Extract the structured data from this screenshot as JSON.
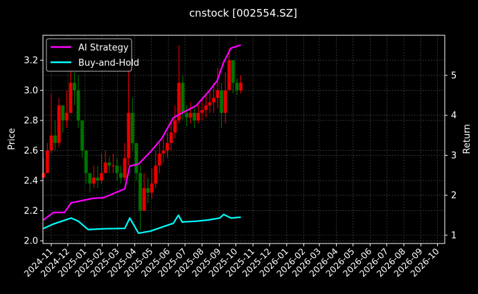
{
  "chart_data": {
    "type": "line",
    "title": "cnstock [002554.SZ]",
    "xlim": [
      "2024-10-17",
      "2026-10-14"
    ],
    "x_ticks": [
      "2024-11",
      "2024-12",
      "2025-01",
      "2025-02",
      "2025-03",
      "2025-04",
      "2025-05",
      "2025-06",
      "2025-07",
      "2025-08",
      "2025-09",
      "2025-10",
      "2025-11",
      "2025-12",
      "2026-01",
      "2026-02",
      "2026-03",
      "2026-04",
      "2026-05",
      "2026-06",
      "2026-07",
      "2026-08",
      "2026-09",
      "2026-10"
    ],
    "left_axis": {
      "label": "Price",
      "ylim": [
        1.982,
        3.366
      ],
      "ticks": [
        "2.0",
        "2.2",
        "2.4",
        "2.6",
        "2.8",
        "3.0",
        "3.2"
      ]
    },
    "right_axis": {
      "label": "Return",
      "ylim": [
        0.792,
        6.004
      ],
      "ticks": [
        "1",
        "2",
        "3",
        "4",
        "5"
      ]
    },
    "grid": true,
    "legend_placement": "top-left",
    "price": {
      "style": "candlestick",
      "up_color": "#ff0000",
      "down_color": "#008000",
      "dates": [
        "2024-10-18",
        "2024-10-25",
        "2024-11-01",
        "2024-11-08",
        "2024-11-15",
        "2024-11-22",
        "2024-11-29",
        "2024-12-06",
        "2024-12-13",
        "2024-12-20",
        "2024-12-27",
        "2025-01-03",
        "2025-01-10",
        "2025-01-17",
        "2025-01-24",
        "2025-01-31",
        "2025-02-07",
        "2025-02-14",
        "2025-02-21",
        "2025-02-28",
        "2025-03-07",
        "2025-03-14",
        "2025-03-21",
        "2025-03-28",
        "2025-04-04",
        "2025-04-11",
        "2025-04-18",
        "2025-04-25",
        "2025-05-02",
        "2025-05-09",
        "2025-05-16",
        "2025-05-23",
        "2025-05-30",
        "2025-06-06",
        "2025-06-13",
        "2025-06-20",
        "2025-06-27",
        "2025-07-04",
        "2025-07-11",
        "2025-07-18",
        "2025-07-25",
        "2025-08-01",
        "2025-08-08",
        "2025-08-15",
        "2025-08-22",
        "2025-08-29",
        "2025-09-05",
        "2025-09-12",
        "2025-09-19",
        "2025-09-26",
        "2025-10-03",
        "2025-10-10"
      ],
      "close": [
        2.45,
        2.6,
        2.7,
        2.65,
        2.9,
        2.8,
        2.85,
        3.05,
        3.0,
        2.8,
        2.6,
        2.45,
        2.38,
        2.42,
        2.4,
        2.45,
        2.52,
        2.5,
        2.5,
        2.45,
        2.42,
        2.55,
        2.85,
        2.65,
        2.45,
        2.2,
        2.35,
        2.32,
        2.38,
        2.5,
        2.58,
        2.6,
        2.65,
        2.72,
        2.8,
        3.05,
        2.85,
        2.82,
        2.85,
        2.8,
        2.85,
        2.87,
        2.9,
        2.92,
        2.95,
        3.0,
        2.85,
        3.0,
        3.2,
        3.05,
        3.0,
        3.05
      ],
      "high": [
        2.55,
        2.65,
        2.98,
        2.8,
        2.95,
        2.9,
        3.0,
        3.2,
        3.12,
        3.1,
        2.72,
        2.6,
        2.45,
        2.5,
        2.5,
        2.58,
        2.6,
        2.56,
        2.58,
        2.55,
        2.5,
        2.65,
        3.2,
        2.95,
        2.6,
        2.5,
        2.45,
        2.42,
        2.48,
        2.6,
        2.65,
        2.68,
        2.72,
        2.8,
        2.9,
        3.3,
        3.1,
        2.9,
        2.92,
        2.9,
        2.92,
        2.95,
        2.98,
        3.0,
        3.05,
        3.15,
        3.05,
        3.12,
        3.28,
        3.2,
        3.08,
        3.1
      ],
      "low": [
        2.42,
        2.45,
        2.58,
        2.6,
        2.62,
        2.72,
        2.75,
        2.85,
        2.9,
        2.75,
        2.55,
        2.38,
        2.32,
        2.35,
        2.35,
        2.38,
        2.45,
        2.45,
        2.45,
        2.4,
        2.38,
        2.4,
        2.5,
        2.6,
        2.4,
        2.07,
        2.2,
        2.25,
        2.28,
        2.35,
        2.45,
        2.52,
        2.55,
        2.6,
        2.68,
        2.78,
        2.8,
        2.76,
        2.78,
        2.75,
        2.78,
        2.8,
        2.82,
        2.85,
        2.85,
        2.88,
        2.75,
        2.78,
        3.0,
        2.98,
        2.97,
        2.98
      ]
    },
    "series": [
      {
        "name": "AI Strategy",
        "color": "#ff00ff",
        "axis": "right",
        "dates": [
          "2024-10-18",
          "2024-11-05",
          "2024-11-25",
          "2024-12-07",
          "2025-01-14",
          "2025-02-04",
          "2025-02-26",
          "2025-03-14",
          "2025-03-23",
          "2025-04-08",
          "2025-04-29",
          "2025-05-20",
          "2025-06-10",
          "2025-06-26",
          "2025-07-21",
          "2025-08-12",
          "2025-08-28",
          "2025-09-09",
          "2025-09-22",
          "2025-10-10"
        ],
        "values": [
          1.38,
          1.57,
          1.57,
          1.81,
          1.92,
          1.94,
          2.07,
          2.16,
          2.73,
          2.78,
          3.08,
          3.42,
          3.94,
          4.06,
          4.24,
          4.58,
          4.86,
          5.33,
          5.68,
          5.76
        ]
      },
      {
        "name": "Buy-and-Hold",
        "color": "#00ffff",
        "axis": "right",
        "dates": [
          "2024-10-18",
          "2024-11-05",
          "2024-12-07",
          "2024-12-20",
          "2025-01-07",
          "2025-02-04",
          "2025-03-14",
          "2025-03-23",
          "2025-04-08",
          "2025-04-29",
          "2025-05-20",
          "2025-06-10",
          "2025-06-19",
          "2025-06-26",
          "2025-07-21",
          "2025-08-12",
          "2025-09-02",
          "2025-09-09",
          "2025-09-22",
          "2025-10-10"
        ],
        "values": [
          1.17,
          1.28,
          1.43,
          1.35,
          1.14,
          1.16,
          1.17,
          1.43,
          1.05,
          1.1,
          1.2,
          1.3,
          1.5,
          1.33,
          1.35,
          1.38,
          1.43,
          1.52,
          1.43,
          1.45
        ]
      }
    ]
  }
}
